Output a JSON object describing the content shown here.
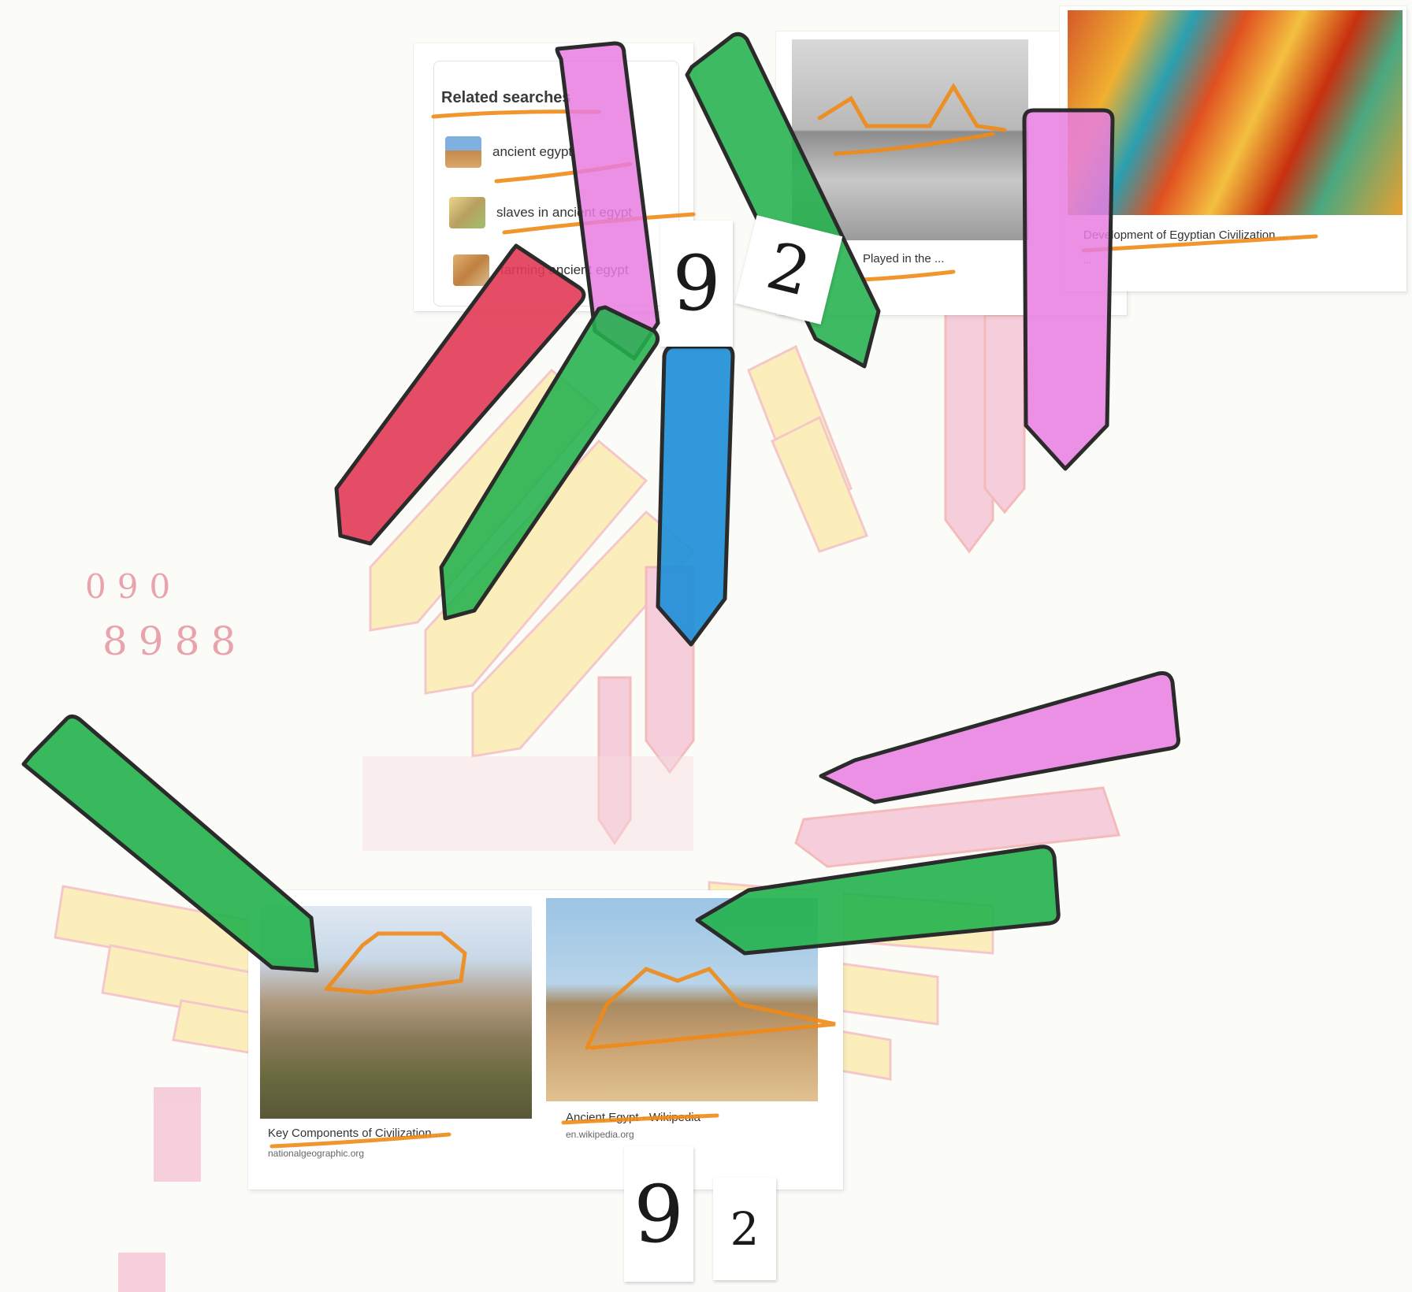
{
  "related_searches": {
    "title": "Related searches",
    "items": [
      {
        "label": "ancient egypt"
      },
      {
        "label": "slaves in ancient egypt"
      },
      {
        "label": "farming ancient egypt"
      }
    ]
  },
  "top_results": [
    {
      "caption": "Played in the ..."
    },
    {
      "caption": "Development of Egyptian Civilization ...",
      "source": "..."
    }
  ],
  "bottom_results": [
    {
      "caption": "Key Components of Civilization ...",
      "source": "nationalgeographic.org"
    },
    {
      "caption": "Ancient Egypt - Wikipedia",
      "source": "en.wikipedia.org"
    }
  ],
  "number_tags": {
    "top_left": "9",
    "top_right": "2",
    "bottom_left": "9",
    "bottom_right": "2"
  },
  "ghost_digits": {
    "row1": "090",
    "row2": "8988"
  },
  "colors": {
    "green": "#22b14c",
    "pink": "#e87de0",
    "red": "#e23a55",
    "blue": "#1f8fd8",
    "yellow_ghost": "#fde48a",
    "pink_ghost": "#f3a9c4",
    "highlighter": "#f08a16",
    "outline": "#2b2b2b"
  }
}
